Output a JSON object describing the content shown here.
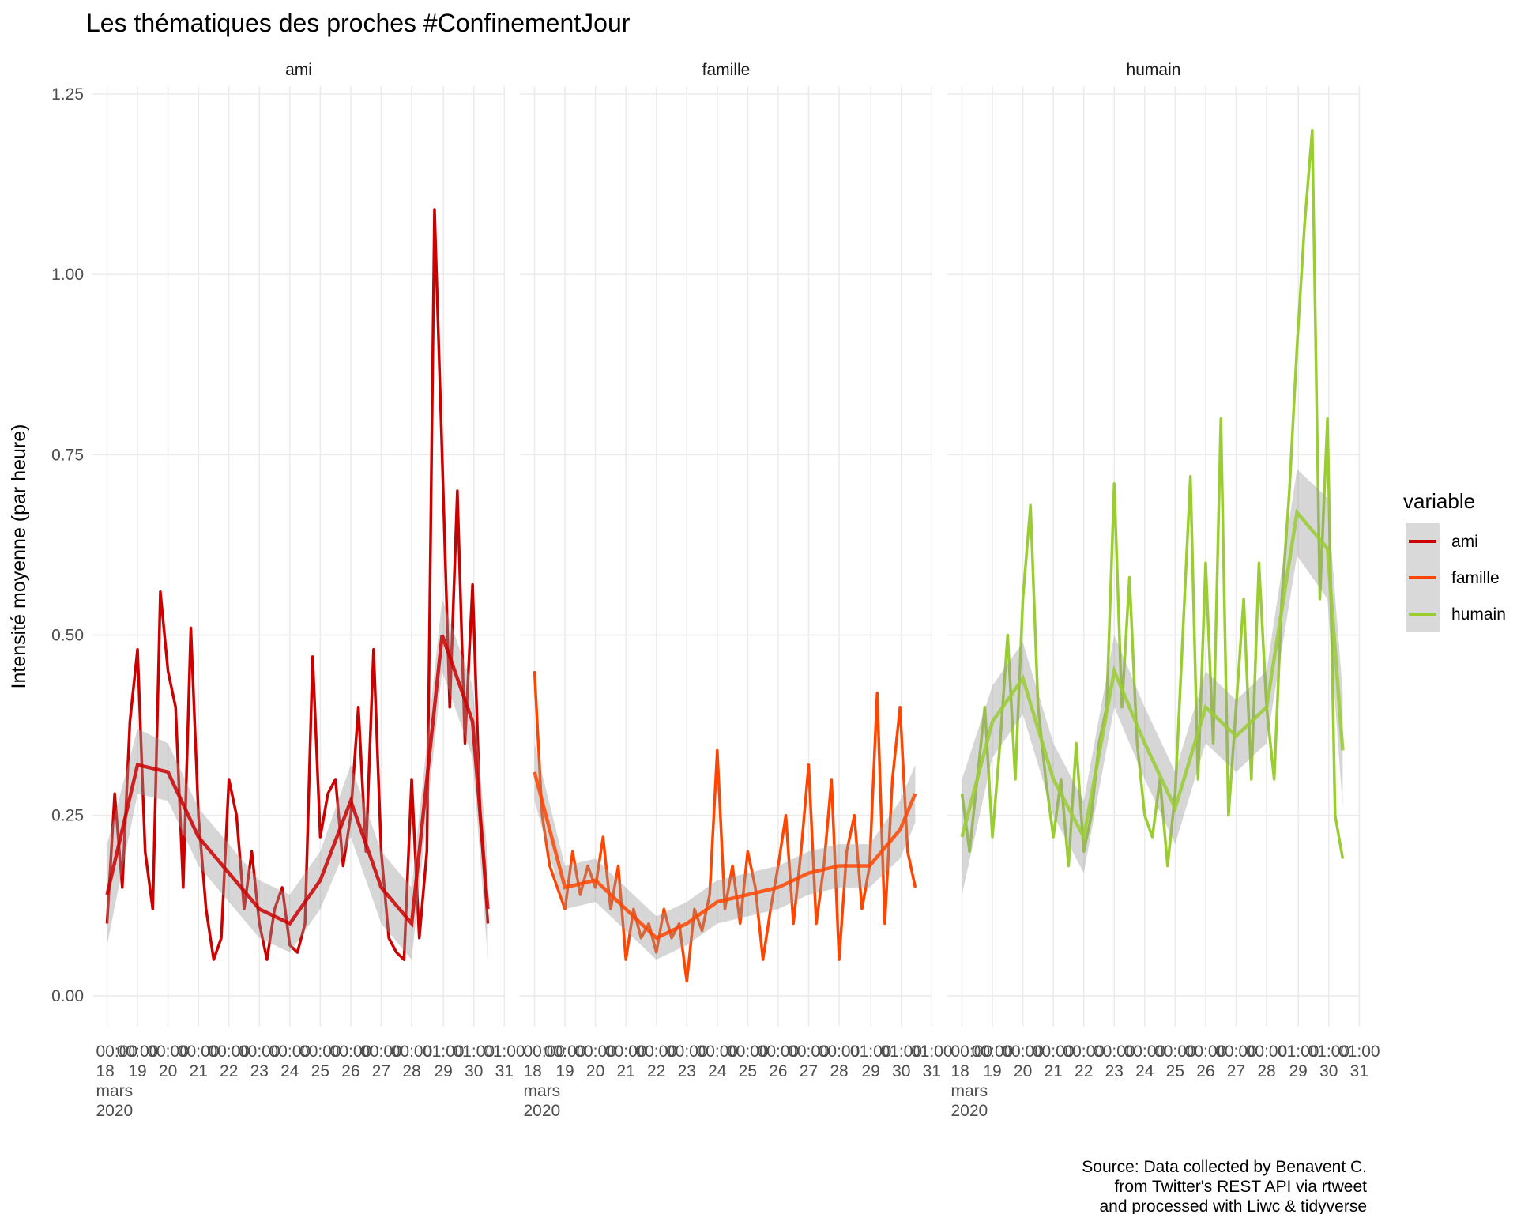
{
  "chart_data": {
    "type": "line",
    "title": "Les thématiques des proches #ConfinementJour",
    "y_label": "Intensité moyenne (par heure)",
    "legend_title": "variable",
    "caption": [
      "Source: Data collected by Benavent C.",
      "from Twitter's REST API via rtweet",
      "and processed with Liwc & tidyverse"
    ],
    "grid": true,
    "xlim": [
      17.52,
      31.06
    ],
    "ylim": [
      -0.043,
      1.261
    ],
    "xticks": [
      {
        "value": 18,
        "label": "00:00\n18\nmars\n2020"
      },
      {
        "value": 19,
        "label": "00:00\n19"
      },
      {
        "value": 20,
        "label": "00:00\n20"
      },
      {
        "value": 21,
        "label": "00:00\n21"
      },
      {
        "value": 22,
        "label": "00:00\n22"
      },
      {
        "value": 23,
        "label": "00:00\n23"
      },
      {
        "value": 24,
        "label": "00:00\n24"
      },
      {
        "value": 25,
        "label": "00:00\n25"
      },
      {
        "value": 26,
        "label": "00:00\n26"
      },
      {
        "value": 27,
        "label": "00:00\n27"
      },
      {
        "value": 28,
        "label": "00:00\n28"
      },
      {
        "value": 29.042,
        "label": "01:00\n29"
      },
      {
        "value": 30.042,
        "label": "01:00\n30"
      },
      {
        "value": 31.042,
        "label": "01:00\n31"
      }
    ],
    "yticks": [
      {
        "value": 0,
        "label": "0.00"
      },
      0.25,
      {
        "value": 0.5,
        "label": "0.50"
      },
      0.75,
      {
        "value": 1,
        "label": "1.00"
      },
      1.25
    ],
    "x": [
      18,
      18.25,
      18.5,
      18.75,
      19,
      19.25,
      19.5,
      19.75,
      20,
      20.25,
      20.5,
      20.75,
      21,
      21.25,
      21.5,
      21.75,
      22,
      22.25,
      22.5,
      22.75,
      23,
      23.25,
      23.5,
      23.75,
      24,
      24.25,
      24.5,
      24.75,
      25,
      25.25,
      25.5,
      25.75,
      26,
      26.25,
      26.5,
      26.75,
      27,
      27.25,
      27.5,
      27.75,
      28,
      28.25,
      28.5,
      28.75,
      29,
      29.25,
      29.5,
      29.75,
      30,
      30.25,
      30.5
    ],
    "smooth_x": [
      18,
      19,
      20,
      21,
      22,
      23,
      24,
      25,
      26,
      27,
      28,
      29,
      30,
      30.5
    ],
    "series": [
      {
        "name": "ami",
        "color": "#cd0000",
        "values": [
          0.1,
          0.28,
          0.15,
          0.38,
          0.48,
          0.2,
          0.12,
          0.56,
          0.45,
          0.4,
          0.15,
          0.51,
          0.25,
          0.12,
          0.05,
          0.08,
          0.3,
          0.25,
          0.12,
          0.2,
          0.1,
          0.05,
          0.12,
          0.15,
          0.07,
          0.06,
          0.1,
          0.47,
          0.22,
          0.28,
          0.3,
          0.18,
          0.25,
          0.4,
          0.2,
          0.48,
          0.2,
          0.08,
          0.06,
          0.05,
          0.3,
          0.08,
          0.2,
          1.09,
          0.75,
          0.4,
          0.7,
          0.35,
          0.57,
          0.25,
          0.1
        ],
        "smooth": [
          0.14,
          0.32,
          0.31,
          0.22,
          0.17,
          0.12,
          0.1,
          0.16,
          0.27,
          0.15,
          0.1,
          0.5,
          0.38,
          0.12
        ],
        "smooth_lo": [
          0.07,
          0.28,
          0.27,
          0.18,
          0.13,
          0.08,
          0.06,
          0.12,
          0.22,
          0.1,
          0.05,
          0.45,
          0.33,
          0.05
        ],
        "smooth_hi": [
          0.21,
          0.37,
          0.35,
          0.26,
          0.21,
          0.16,
          0.14,
          0.2,
          0.32,
          0.2,
          0.15,
          0.55,
          0.43,
          0.19
        ]
      },
      {
        "name": "famille",
        "color": "#ff4500",
        "values": [
          0.45,
          0.25,
          0.18,
          0.15,
          0.12,
          0.2,
          0.14,
          0.18,
          0.15,
          0.22,
          0.12,
          0.18,
          0.05,
          0.12,
          0.08,
          0.1,
          0.06,
          0.12,
          0.08,
          0.1,
          0.02,
          0.12,
          0.09,
          0.14,
          0.34,
          0.12,
          0.18,
          0.1,
          0.2,
          0.15,
          0.05,
          0.12,
          0.18,
          0.25,
          0.1,
          0.2,
          0.32,
          0.1,
          0.18,
          0.3,
          0.05,
          0.2,
          0.25,
          0.12,
          0.18,
          0.42,
          0.1,
          0.3,
          0.4,
          0.2,
          0.15
        ],
        "smooth": [
          0.31,
          0.15,
          0.16,
          0.12,
          0.08,
          0.1,
          0.13,
          0.14,
          0.15,
          0.17,
          0.18,
          0.18,
          0.23,
          0.28
        ],
        "smooth_lo": [
          0.27,
          0.12,
          0.13,
          0.09,
          0.05,
          0.07,
          0.1,
          0.11,
          0.12,
          0.14,
          0.15,
          0.15,
          0.19,
          0.24
        ],
        "smooth_hi": [
          0.35,
          0.18,
          0.19,
          0.15,
          0.11,
          0.13,
          0.16,
          0.17,
          0.18,
          0.2,
          0.21,
          0.21,
          0.27,
          0.32
        ]
      },
      {
        "name": "humain",
        "color": "#9acd32",
        "values": [
          0.28,
          0.2,
          0.3,
          0.4,
          0.22,
          0.35,
          0.5,
          0.3,
          0.55,
          0.68,
          0.4,
          0.3,
          0.22,
          0.3,
          0.18,
          0.35,
          0.2,
          0.25,
          0.35,
          0.4,
          0.71,
          0.4,
          0.58,
          0.35,
          0.25,
          0.22,
          0.3,
          0.18,
          0.28,
          0.5,
          0.72,
          0.3,
          0.6,
          0.35,
          0.8,
          0.25,
          0.4,
          0.55,
          0.3,
          0.6,
          0.4,
          0.3,
          0.55,
          0.7,
          0.9,
          1.07,
          1.2,
          0.55,
          0.8,
          0.25,
          0.19
        ],
        "smooth": [
          0.22,
          0.38,
          0.44,
          0.3,
          0.22,
          0.45,
          0.35,
          0.26,
          0.4,
          0.36,
          0.4,
          0.67,
          0.62,
          0.34
        ],
        "smooth_lo": [
          0.14,
          0.33,
          0.39,
          0.25,
          0.17,
          0.4,
          0.3,
          0.21,
          0.35,
          0.31,
          0.35,
          0.61,
          0.55,
          0.26
        ],
        "smooth_hi": [
          0.3,
          0.43,
          0.49,
          0.35,
          0.27,
          0.5,
          0.4,
          0.31,
          0.45,
          0.41,
          0.45,
          0.73,
          0.69,
          0.42
        ]
      }
    ]
  }
}
